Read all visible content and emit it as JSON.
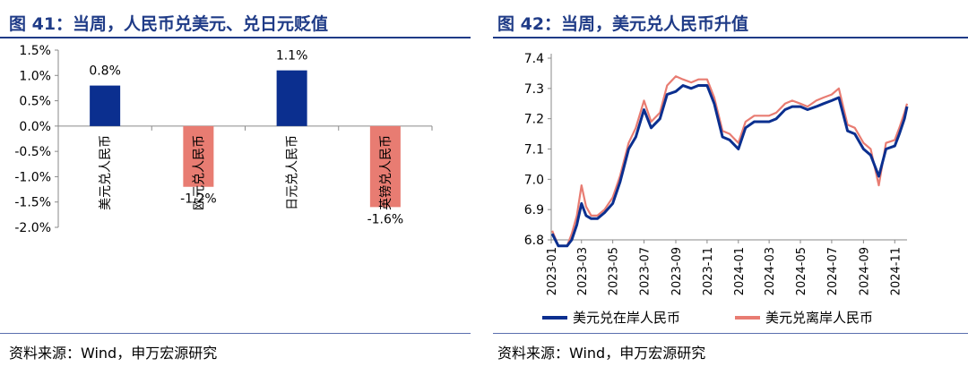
{
  "left": {
    "title": "图 41：当周，人民币兑美元、兑日元贬值",
    "source": "资料来源：Wind，申万宏源研究"
  },
  "right": {
    "title": "图 42：当周，美元兑人民币升值",
    "source": "资料来源：Wind，申万宏源研究"
  },
  "colors": {
    "title_blue": "#1f3b87",
    "bar_positive": "#0b2f8f",
    "bar_negative": "#e87c72",
    "line_onshore": "#0b2f8f",
    "line_offshore": "#e87c72"
  },
  "chart_data": [
    {
      "type": "bar",
      "categories": [
        "美元兑人民币",
        "欧元兑人民币",
        "日元兑人民币",
        "英镑兑人民币"
      ],
      "values": [
        0.8,
        -1.2,
        1.1,
        -1.6
      ],
      "data_labels": [
        "0.8%",
        "-1.2%",
        "1.1%",
        "-1.6%"
      ],
      "yticks": [
        "1.5%",
        "1.0%",
        "0.5%",
        "0.0%",
        "-0.5%",
        "-1.0%",
        "-1.5%",
        "-2.0%"
      ],
      "ylim": [
        -2.0,
        1.5
      ],
      "grid": false
    },
    {
      "type": "line",
      "xticks": [
        "2023-01",
        "2023-03",
        "2023-05",
        "2023-07",
        "2023-09",
        "2023-11",
        "2024-01",
        "2024-03",
        "2024-05",
        "2024-07",
        "2024-09",
        "2024-11"
      ],
      "yticks": [
        "7.4",
        "7.3",
        "7.2",
        "7.1",
        "7.0",
        "6.9",
        "6.8"
      ],
      "ylim": [
        6.8,
        7.4
      ],
      "xlim": [
        "2023-01",
        "2024-11-25"
      ],
      "grid": false,
      "legend_position": "bottom",
      "series": [
        {
          "name": "美元兑在岸人民币",
          "x": [
            "2023-01-03",
            "2023-01-15",
            "2023-02-01",
            "2023-02-10",
            "2023-02-20",
            "2023-03-01",
            "2023-03-10",
            "2023-03-20",
            "2023-04-01",
            "2023-04-15",
            "2023-05-01",
            "2023-05-15",
            "2023-06-01",
            "2023-06-15",
            "2023-07-01",
            "2023-07-15",
            "2023-08-01",
            "2023-08-15",
            "2023-09-01",
            "2023-09-15",
            "2023-10-01",
            "2023-10-15",
            "2023-11-01",
            "2023-11-15",
            "2023-12-01",
            "2023-12-15",
            "2024-01-01",
            "2024-01-15",
            "2024-02-01",
            "2024-02-15",
            "2024-03-01",
            "2024-03-15",
            "2024-04-01",
            "2024-04-15",
            "2024-05-01",
            "2024-05-15",
            "2024-06-01",
            "2024-06-15",
            "2024-07-01",
            "2024-07-15",
            "2024-08-01",
            "2024-08-15",
            "2024-09-01",
            "2024-09-15",
            "2024-10-01",
            "2024-10-15",
            "2024-11-01",
            "2024-11-10",
            "2024-11-20",
            "2024-11-25"
          ],
          "values": [
            6.82,
            6.78,
            6.76,
            6.8,
            6.85,
            6.92,
            6.88,
            6.87,
            6.87,
            6.89,
            6.92,
            6.99,
            7.1,
            7.14,
            7.23,
            7.17,
            7.2,
            7.28,
            7.29,
            7.31,
            7.3,
            7.31,
            7.31,
            7.25,
            7.14,
            7.13,
            7.1,
            7.17,
            7.19,
            7.19,
            7.19,
            7.2,
            7.23,
            7.24,
            7.24,
            7.23,
            7.24,
            7.25,
            7.26,
            7.27,
            7.16,
            7.15,
            7.1,
            7.08,
            7.01,
            7.1,
            7.11,
            7.15,
            7.2,
            7.24
          ]
        },
        {
          "name": "美元兑离岸人民币",
          "x": [
            "2023-01-03",
            "2023-01-15",
            "2023-02-01",
            "2023-02-10",
            "2023-02-20",
            "2023-03-01",
            "2023-03-10",
            "2023-03-20",
            "2023-04-01",
            "2023-04-15",
            "2023-05-01",
            "2023-05-15",
            "2023-06-01",
            "2023-06-15",
            "2023-07-01",
            "2023-07-15",
            "2023-08-01",
            "2023-08-15",
            "2023-09-01",
            "2023-09-15",
            "2023-10-01",
            "2023-10-15",
            "2023-11-01",
            "2023-11-15",
            "2023-12-01",
            "2023-12-15",
            "2024-01-01",
            "2024-01-15",
            "2024-02-01",
            "2024-02-15",
            "2024-03-01",
            "2024-03-15",
            "2024-04-01",
            "2024-04-15",
            "2024-05-01",
            "2024-05-15",
            "2024-06-01",
            "2024-06-15",
            "2024-07-01",
            "2024-07-15",
            "2024-08-01",
            "2024-08-15",
            "2024-09-01",
            "2024-09-15",
            "2024-10-01",
            "2024-10-15",
            "2024-11-01",
            "2024-11-10",
            "2024-11-20",
            "2024-11-25"
          ],
          "values": [
            6.83,
            6.78,
            6.77,
            6.82,
            6.88,
            6.98,
            6.91,
            6.88,
            6.88,
            6.9,
            6.94,
            7.01,
            7.12,
            7.17,
            7.26,
            7.19,
            7.22,
            7.31,
            7.34,
            7.33,
            7.32,
            7.33,
            7.33,
            7.27,
            7.16,
            7.15,
            7.12,
            7.19,
            7.21,
            7.21,
            7.21,
            7.22,
            7.25,
            7.26,
            7.25,
            7.24,
            7.26,
            7.27,
            7.28,
            7.3,
            7.18,
            7.17,
            7.12,
            7.1,
            6.98,
            7.12,
            7.13,
            7.17,
            7.22,
            7.25
          ]
        }
      ]
    }
  ]
}
